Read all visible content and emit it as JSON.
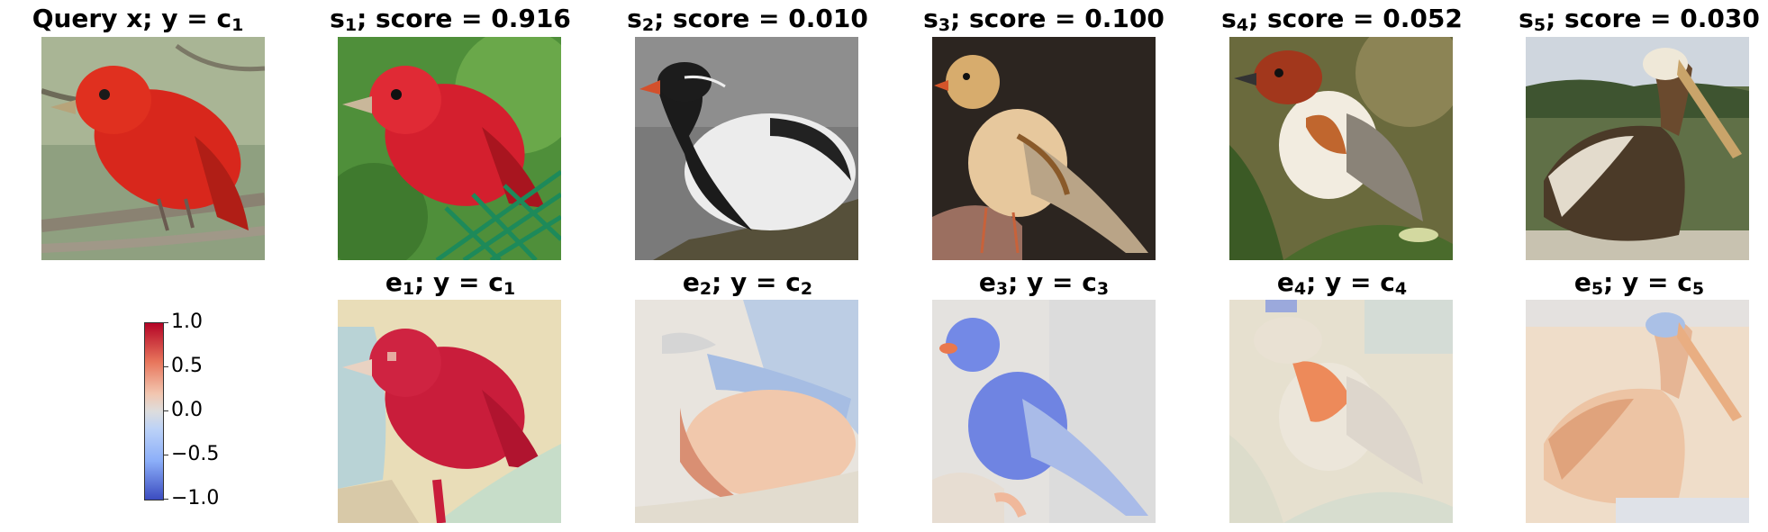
{
  "query": {
    "prefix": "Query x; y",
    "eq": " = ",
    "c": "c",
    "c_sub": "1"
  },
  "top_titles": [
    {
      "s": "s",
      "sub": "1",
      "rest": "; score = 0.916"
    },
    {
      "s": "s",
      "sub": "2",
      "rest": "; score = 0.010"
    },
    {
      "s": "s",
      "sub": "3",
      "rest": "; score = 0.100"
    },
    {
      "s": "s",
      "sub": "4",
      "rest": "; score = 0.052"
    },
    {
      "s": "s",
      "sub": "5",
      "rest": "; score = 0.030"
    }
  ],
  "bottom_titles": [
    {
      "e": "e",
      "sub": "1",
      "mid": "; y = ",
      "c": "c",
      "c_sub": "1"
    },
    {
      "e": "e",
      "sub": "2",
      "mid": "; y = ",
      "c": "c",
      "c_sub": "2"
    },
    {
      "e": "e",
      "sub": "3",
      "mid": "; y = ",
      "c": "c",
      "c_sub": "3"
    },
    {
      "e": "e",
      "sub": "4",
      "mid": "; y = ",
      "c": "c",
      "c_sub": "4"
    },
    {
      "e": "e",
      "sub": "5",
      "mid": "; y = ",
      "c": "c",
      "c_sub": "5"
    }
  ],
  "colorbar": {
    "ticks": [
      "1.0",
      "0.5",
      "0.0",
      "−0.5",
      "−1.0"
    ],
    "colors": {
      "high": "#b40426",
      "mid": "#dddddd",
      "low": "#3b4cc0"
    }
  }
}
